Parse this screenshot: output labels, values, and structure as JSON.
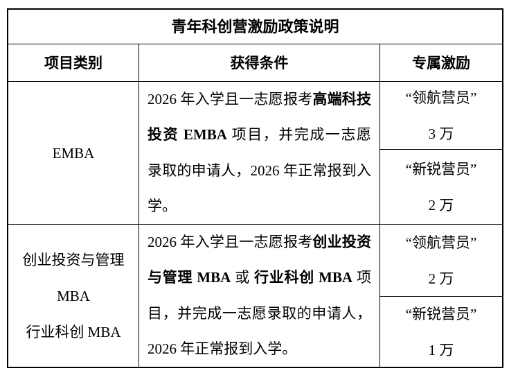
{
  "table": {
    "title": "青年科创营激励政策说明",
    "columns": [
      "项目类别",
      "获得条件",
      "专属激励"
    ],
    "rows": [
      {
        "category_lines": [
          "EMBA"
        ],
        "condition_segments": [
          {
            "t": "2026 年入学且一志愿报考",
            "b": false
          },
          {
            "t": "高端科技投资 EMBA",
            "b": true
          },
          {
            "t": " 项目，并完成一志愿录取的申请人，2026 年正常报到入学。",
            "b": false
          }
        ],
        "incentives": [
          {
            "name": "“领航营员”",
            "amount": "3 万"
          },
          {
            "name": "“新锐营员”",
            "amount": "2 万"
          }
        ]
      },
      {
        "category_lines": [
          "创业投资与管理",
          "MBA",
          "行业科创 MBA"
        ],
        "condition_segments": [
          {
            "t": "2026 年入学且一志愿报考",
            "b": false
          },
          {
            "t": "创业投资与管理 MBA",
            "b": true
          },
          {
            "t": " 或 ",
            "b": false
          },
          {
            "t": "行业科创 MBA",
            "b": true
          },
          {
            "t": " 项目，并完成一志愿录取的申请人，2026 年正常报到入学。",
            "b": false
          }
        ],
        "incentives": [
          {
            "name": "“领航营员”",
            "amount": "2 万"
          },
          {
            "name": "“新锐营员”",
            "amount": "1 万"
          }
        ]
      }
    ]
  }
}
